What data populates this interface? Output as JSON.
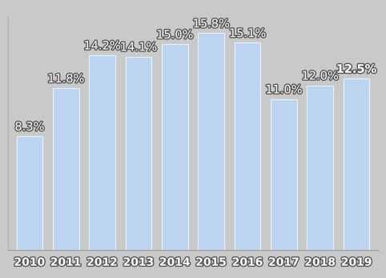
{
  "chart_data": {
    "type": "bar",
    "categories": [
      "2010",
      "2011",
      "2012",
      "2013",
      "2014",
      "2015",
      "2016",
      "2017",
      "2018",
      "2019"
    ],
    "values": [
      8.3,
      11.8,
      14.2,
      14.1,
      15.0,
      15.8,
      15.1,
      11.0,
      12.0,
      12.5
    ],
    "value_labels": [
      "8.3%",
      "11.8%",
      "14.2%",
      "14.1%",
      "15.0%",
      "15.8%",
      "15.1%",
      "11.0%",
      "12.0%",
      "12.5%"
    ],
    "data_labels": true,
    "color": "#bcd4ef",
    "ylim": [
      0,
      17
    ],
    "yticks": [],
    "tick_labels": "x",
    "grid": false
  }
}
